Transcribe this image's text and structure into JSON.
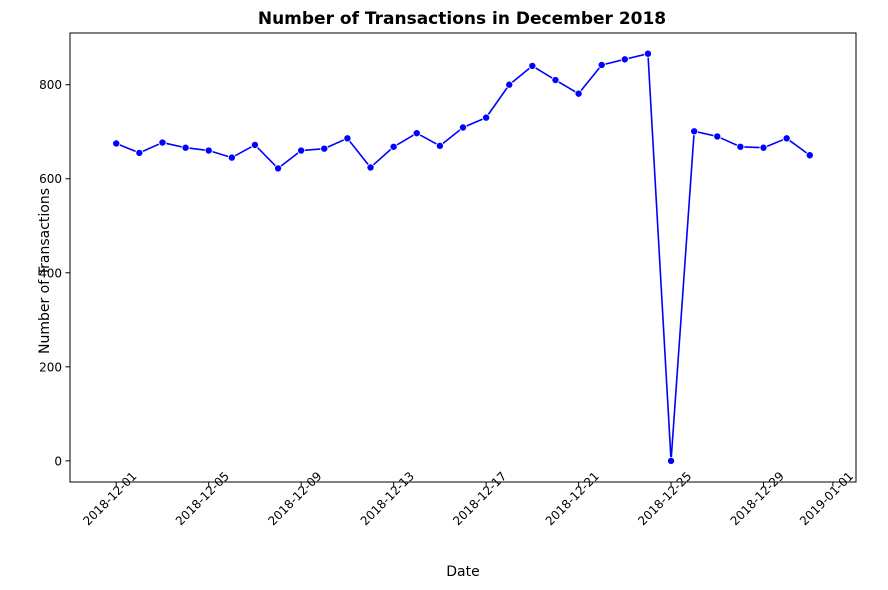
{
  "chart_data": {
    "type": "line",
    "title": "Number of Transactions in December 2018",
    "xlabel": "Date",
    "ylabel": "Number of Transactions",
    "x": [
      "2018-12-01",
      "2018-12-02",
      "2018-12-03",
      "2018-12-04",
      "2018-12-05",
      "2018-12-06",
      "2018-12-07",
      "2018-12-08",
      "2018-12-09",
      "2018-12-10",
      "2018-12-11",
      "2018-12-12",
      "2018-12-13",
      "2018-12-14",
      "2018-12-15",
      "2018-12-16",
      "2018-12-17",
      "2018-12-18",
      "2018-12-19",
      "2018-12-20",
      "2018-12-21",
      "2018-12-22",
      "2018-12-23",
      "2018-12-24",
      "2018-12-25",
      "2018-12-26",
      "2018-12-27",
      "2018-12-28",
      "2018-12-29",
      "2018-12-30",
      "2018-12-31"
    ],
    "series": [
      {
        "values": [
          675,
          655,
          677,
          666,
          660,
          645,
          672,
          622,
          660,
          664,
          686,
          624,
          668,
          697,
          670,
          709,
          730,
          800,
          840,
          810,
          781,
          842,
          854,
          866,
          0,
          701,
          690,
          668,
          666,
          686,
          650
        ],
        "color": "#0000ff",
        "marker": "circle"
      }
    ],
    "xlim": [
      "2018-11-29",
      "2019-01-02"
    ],
    "ylim": [
      -45,
      910
    ],
    "xticks": [
      "2018-12-01",
      "2018-12-05",
      "2018-12-09",
      "2018-12-13",
      "2018-12-17",
      "2018-12-21",
      "2018-12-25",
      "2018-12-29",
      "2019-01-01"
    ],
    "yticks": [
      0,
      200,
      400,
      600,
      800
    ],
    "grid": false,
    "legend": "none"
  }
}
